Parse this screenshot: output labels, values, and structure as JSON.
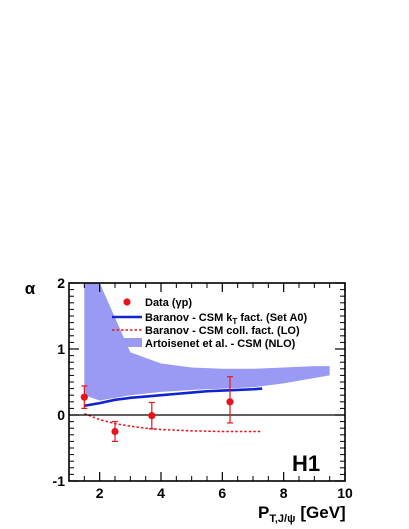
{
  "chart_data": {
    "type": "scatter",
    "title": "",
    "xlabel": "P_{T,J/ψ} [GeV]",
    "xlabel_main": "P",
    "xlabel_sub": "T,J/ψ",
    "xlabel_unit": "[GeV]",
    "ylabel": "α",
    "xlim": [
      1,
      10
    ],
    "ylim": [
      -1,
      2
    ],
    "x_ticks": [
      2,
      4,
      6,
      8,
      10
    ],
    "y_ticks": [
      -1,
      0,
      1,
      2
    ],
    "x_tick_labels": [
      "2",
      "4",
      "6",
      "8",
      "10"
    ],
    "y_tick_labels": [
      "-1",
      "0",
      "1",
      "2"
    ],
    "zero_line": true,
    "grid": false,
    "legend_position": "top-right",
    "experiment_label": "H1",
    "series": [
      {
        "name": "Data (γp)",
        "legend": "Data (γp)",
        "kind": "points_with_errors",
        "color": "#e8141c",
        "points": [
          {
            "x": 1.5,
            "y": 0.27,
            "err_lo": 0.17,
            "err_hi": 0.17
          },
          {
            "x": 2.5,
            "y": -0.25,
            "err_lo": 0.15,
            "err_hi": 0.15
          },
          {
            "x": 3.7,
            "y": -0.01,
            "err_lo": 0.2,
            "err_hi": 0.2
          },
          {
            "x": 6.25,
            "y": 0.2,
            "err_lo": 0.32,
            "err_hi": 0.38
          }
        ]
      },
      {
        "name": "Baranov - CSM k_T fact. (Set A0)",
        "legend": "Baranov - CSM k",
        "legend_sub": "T",
        "legend_tail": " fact. (Set A0)",
        "kind": "line",
        "color": "#1024d0",
        "x": [
          1.5,
          2,
          2.5,
          3,
          3.5,
          4,
          4.5,
          5,
          5.5,
          6,
          6.5,
          7,
          7.3
        ],
        "y": [
          0.14,
          0.18,
          0.23,
          0.26,
          0.28,
          0.3,
          0.32,
          0.34,
          0.36,
          0.37,
          0.38,
          0.39,
          0.4
        ]
      },
      {
        "name": "Baranov - CSM coll. fact. (LO)",
        "legend": "Baranov - CSM coll. fact. (LO)",
        "kind": "dashed_line",
        "color": "#e8141c",
        "x": [
          1.5,
          2,
          2.5,
          3,
          3.5,
          4,
          4.5,
          5,
          5.5,
          6,
          6.5,
          7,
          7.3
        ],
        "y": [
          0.02,
          -0.07,
          -0.13,
          -0.17,
          -0.2,
          -0.22,
          -0.23,
          -0.24,
          -0.245,
          -0.25,
          -0.25,
          -0.25,
          -0.25
        ]
      },
      {
        "name": "Artoisenet et al. - CSM (NLO)",
        "legend": "Artoisenet et al. - CSM (NLO)",
        "kind": "band",
        "color": "#9a9af4",
        "x": [
          1.5,
          2,
          3,
          4,
          5,
          6,
          7,
          8,
          9,
          9.5
        ],
        "y_low": [
          0.3,
          0.22,
          0.3,
          0.35,
          0.38,
          0.4,
          0.42,
          0.48,
          0.56,
          0.6
        ],
        "y_high": [
          2.0,
          2.0,
          0.95,
          0.78,
          0.72,
          0.7,
          0.7,
          0.72,
          0.74,
          0.74
        ]
      }
    ]
  }
}
